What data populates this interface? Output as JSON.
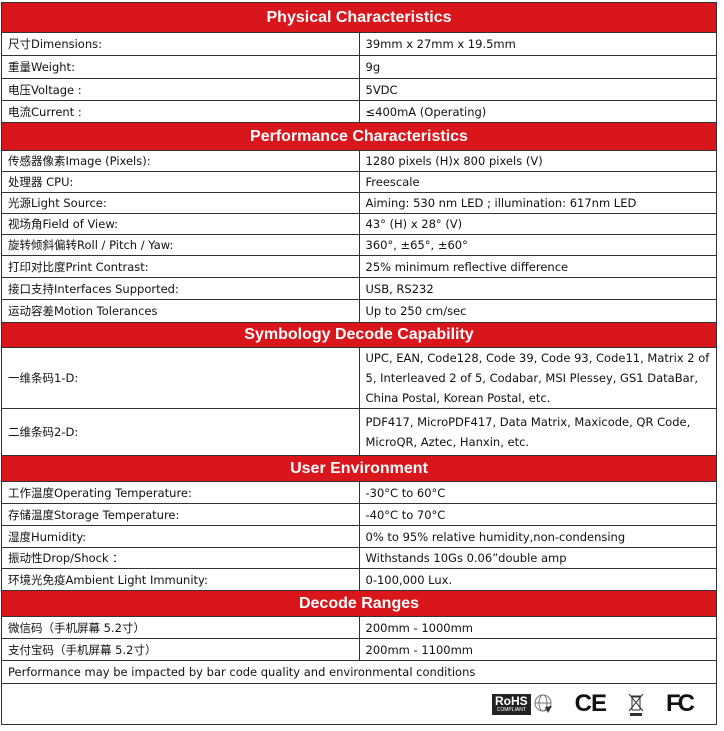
{
  "sections": [
    {
      "title": "Physical Characteristics",
      "rows": [
        [
          "尺寸Dimensions:",
          "39mm x 27mm x 19.5mm"
        ],
        [
          "重量Weight:",
          "9g"
        ],
        [
          "电压Voltage :",
          "5VDC"
        ],
        [
          "电流Current :",
          "≤400mA (Operating)"
        ]
      ]
    },
    {
      "title": "Performance Characteristics",
      "rows": [
        [
          "传感器像素Image (Pixels):",
          "1280 pixels (H)x 800 pixels (V)"
        ],
        [
          "处理器 CPU:",
          "Freescale"
        ],
        [
          "光源Light Source:",
          "Aiming: 530 nm LED ; illumination: 617nm LED"
        ],
        [
          "视场角Field of View:",
          "43° (H) x 28° (V)"
        ],
        [
          "旋转倾斜偏转Roll / Pitch / Yaw:",
          "360°, ±65°, ±60°"
        ],
        [
          "打印对比度Print Contrast:",
          "25% minimum reflective difference"
        ],
        [
          "接口支持Interfaces Supported:",
          "USB, RS232"
        ],
        [
          "运动容差Motion Tolerances",
          "Up to 250 cm/sec"
        ]
      ]
    },
    {
      "title": "Symbology Decode Capability",
      "rows": [
        [
          "一维条码1-D:",
          "UPC, EAN, Code128, Code 39, Code 93, Code11, Matrix 2 of 5, Interleaved 2 of 5, Codabar, MSI Plessey, GS1 DataBar, China Postal, Korean Postal, etc."
        ],
        [
          "二维条码2-D:",
          "PDF417, MicroPDF417, Data Matrix, Maxicode, QR Code, MicroQR, Aztec, Hanxin, etc."
        ]
      ]
    },
    {
      "title": "User Environment",
      "rows": [
        [
          "工作温度Operating Temperature:",
          "-30°C to 60°C"
        ],
        [
          "存储温度Storage Temperature:",
          "-40°C to 70°C"
        ],
        [
          "湿度Humidity:",
          "0% to 95% relative humidity,non-condensing"
        ],
        [
          "振动性Drop/Shock ：",
          "Withstands 10Gs 0.06”double amp"
        ],
        [
          "环境光免疫Ambient Light Immunity:",
          "0-100,000 Lux."
        ]
      ]
    },
    {
      "title": "Decode Ranges",
      "rows": [
        [
          "微信码（手机屏幕 5.2寸）",
          "200mm - 1000mm"
        ],
        [
          "支付宝码（手机屏幕 5.2寸）",
          "200mm - 1100mm"
        ]
      ]
    }
  ],
  "note": "Performance may be impacted by bar code quality and environmental conditions",
  "logos": {
    "rohs": "RoHS",
    "rohs_sub": "COMPLIANT",
    "ce": "CE",
    "weee": "weee-bin-icon",
    "fcc": "FC"
  }
}
